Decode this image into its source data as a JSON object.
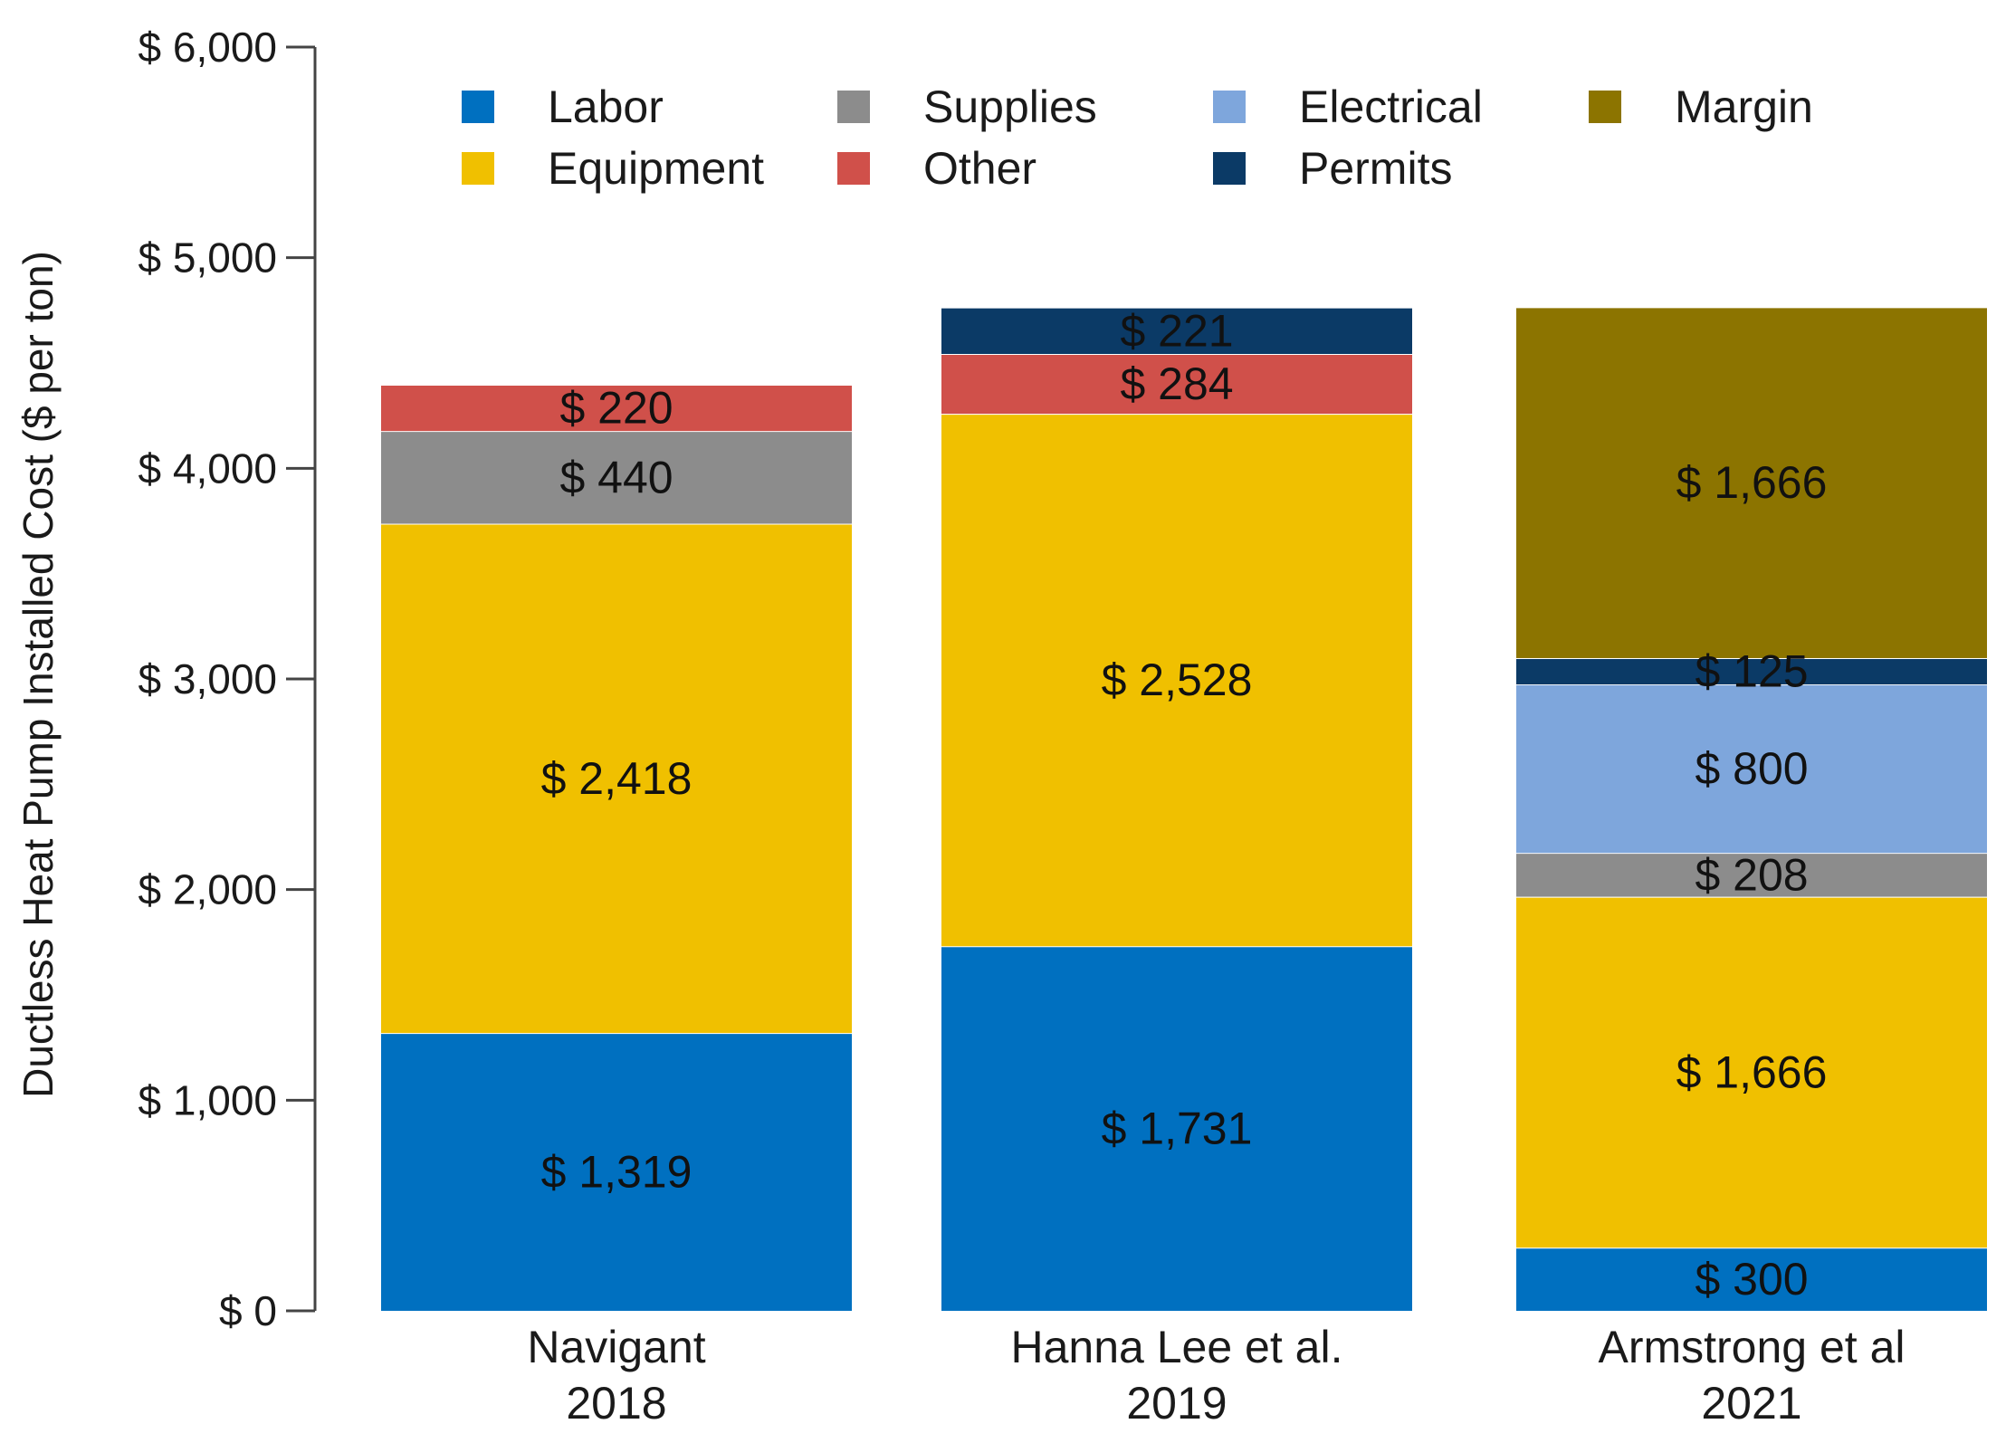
{
  "chart_data": {
    "type": "bar",
    "stacked": true,
    "title": "",
    "xlabel": "",
    "ylabel": "Ductless Heat Pump Installed Cost ($ per ton)",
    "ylim": [
      0,
      6000
    ],
    "yticks": [
      0,
      1000,
      2000,
      3000,
      4000,
      5000,
      6000
    ],
    "ytick_labels": [
      "$ 0",
      "$ 1,000",
      "$ 2,000",
      "$ 3,000",
      "$ 4,000",
      "$ 5,000",
      "$ 6,000"
    ],
    "grid": false,
    "legend_position": "top",
    "categories": [
      [
        "Navigant",
        "2018"
      ],
      [
        "Hanna Lee et al.",
        "2019"
      ],
      [
        "Armstrong et al",
        "2021"
      ]
    ],
    "series": [
      {
        "name": "Labor",
        "color": "#0070c0",
        "values": [
          1319,
          1731,
          300
        ],
        "labels": [
          "$ 1,319",
          "$ 1,731",
          "$ 300"
        ]
      },
      {
        "name": "Equipment",
        "color": "#f0c000",
        "values": [
          2418,
          2528,
          1666
        ],
        "labels": [
          "$ 2,418",
          "$ 2,528",
          "$ 1,666"
        ]
      },
      {
        "name": "Supplies",
        "color": "#8c8c8c",
        "values": [
          440,
          0,
          208
        ],
        "labels": [
          "$ 440",
          "",
          "$ 208"
        ]
      },
      {
        "name": "Other",
        "color": "#d0504a",
        "values": [
          220,
          284,
          0
        ],
        "labels": [
          "$ 220",
          "$ 284",
          ""
        ]
      },
      {
        "name": "Electrical",
        "color": "#7ea6dc",
        "values": [
          0,
          0,
          800
        ],
        "labels": [
          "",
          "",
          "$ 800"
        ]
      },
      {
        "name": "Permits",
        "color": "#0b3a66",
        "values": [
          0,
          221,
          125
        ],
        "labels": [
          "",
          "$ 221",
          "$ 125"
        ]
      },
      {
        "name": "Margin",
        "color": "#8c7400",
        "values": [
          0,
          0,
          1666
        ],
        "labels": [
          "",
          "",
          "$ 1,666"
        ]
      }
    ],
    "legend_order": [
      "Labor",
      "Supplies",
      "Electrical",
      "Margin",
      "Equipment",
      "Other",
      "Permits"
    ]
  }
}
